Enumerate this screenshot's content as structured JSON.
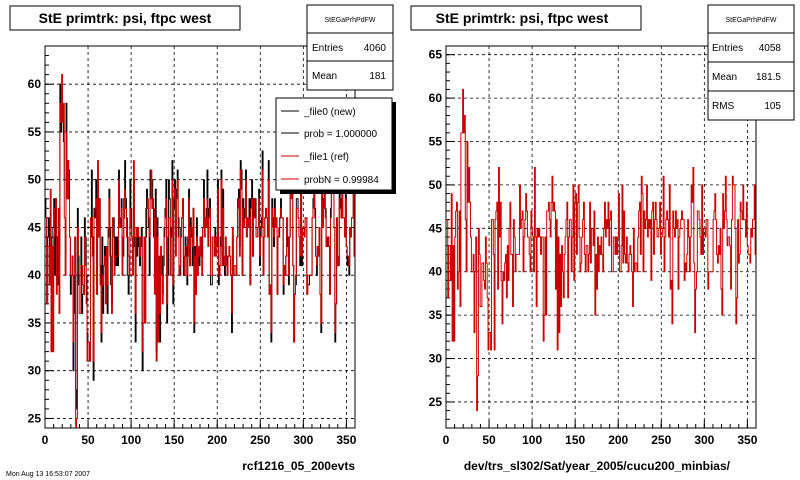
{
  "chart_data": [
    {
      "type": "histogram",
      "title": "StE primtrk: psi, ftpc west",
      "xlabel": "rcf1216_05_200evts",
      "xlim": [
        0,
        360
      ],
      "ylim": [
        24,
        64
      ],
      "xticks": [
        0,
        50,
        100,
        150,
        200,
        250,
        300,
        350
      ],
      "yticks": [
        25,
        30,
        35,
        40,
        45,
        50,
        55,
        60
      ],
      "grid": true,
      "stats": {
        "name": "StEGaPrhPdFW",
        "entries_label": "Entries",
        "entries": "4060",
        "mean_label": "Mean",
        "mean": "181"
      },
      "legend": [
        {
          "label": "_file0 (new)",
          "color": "#000000"
        },
        {
          "label": "prob = 1.000000",
          "color": "#000000"
        },
        {
          "label": "_file1 (ref)",
          "color": "#cc0000"
        },
        {
          "label": "probN = 0.99984",
          "color": "#cc0000"
        }
      ],
      "series": [
        {
          "name": "_file0 (new)",
          "color": "#000000",
          "values": [
            48,
            46,
            37,
            44,
            46,
            39,
            44,
            32,
            44,
            45,
            48,
            40,
            48,
            44,
            39,
            44,
            42,
            60,
            55,
            58,
            56,
            54,
            50,
            50,
            58,
            52,
            52,
            51,
            44,
            38,
            40,
            42,
            30,
            36,
            44,
            28,
            26,
            47,
            39,
            40,
            40,
            44,
            36,
            38,
            38,
            46,
            44,
            40,
            34,
            31,
            31,
            33,
            44,
            51,
            44,
            29,
            47,
            46,
            50,
            38,
            50,
            46,
            48,
            41,
            33,
            44,
            36,
            41,
            43,
            40,
            43,
            36,
            44,
            49,
            45,
            39,
            37,
            45,
            46,
            42,
            44,
            41,
            44,
            41,
            51,
            46,
            45,
            48,
            42,
            42,
            48,
            52,
            48,
            46,
            40,
            38,
            42,
            50,
            47,
            44,
            41,
            50,
            43,
            33,
            45,
            42,
            44,
            43,
            41,
            43,
            45,
            30,
            35,
            41,
            35,
            44,
            49,
            47,
            45,
            40,
            51,
            50,
            50,
            47,
            44,
            39,
            49,
            32,
            46,
            36,
            41,
            33,
            42,
            42,
            38,
            41,
            45,
            47,
            50,
            35,
            40,
            50,
            48,
            40,
            45,
            52,
            37,
            47,
            50,
            44,
            49,
            51,
            46,
            40,
            40,
            45,
            46,
            48,
            40,
            40,
            44,
            42,
            39,
            44,
            49,
            41,
            46,
            44,
            41,
            47,
            34,
            43,
            38,
            46,
            40,
            43,
            41,
            44,
            44,
            42,
            45,
            50,
            45,
            46,
            47,
            51,
            44,
            47,
            48,
            39,
            39,
            44,
            44,
            43,
            45,
            43,
            43,
            50,
            39,
            41,
            44,
            51,
            42,
            49,
            41,
            40,
            43,
            42,
            40,
            42,
            42,
            42,
            40,
            34,
            44,
            40,
            40,
            40,
            40,
            44,
            48,
            49,
            43,
            52,
            51,
            40,
            48,
            46,
            47,
            51,
            44,
            46,
            45,
            48,
            39,
            48,
            50,
            42,
            48,
            48,
            48,
            44,
            44,
            45,
            49,
            41,
            45,
            46,
            53,
            40,
            44,
            46,
            47,
            46,
            44,
            52,
            38,
            38,
            33,
            48,
            46,
            43,
            48,
            45,
            46,
            38,
            44,
            44,
            46,
            48,
            46,
            46,
            38,
            41,
            40,
            42,
            46,
            43,
            39,
            44,
            52,
            50,
            54,
            41,
            33,
            38,
            39,
            48,
            48,
            46,
            44,
            41,
            51,
            41,
            45,
            45,
            44,
            46,
            46,
            38,
            39,
            39,
            40,
            40,
            40,
            46,
            48,
            50,
            47,
            42,
            40,
            43,
            42,
            45,
            38,
            34,
            50,
            45,
            48,
            52,
            47,
            43,
            43,
            44,
            43,
            38,
            47,
            52,
            51,
            51,
            45,
            33,
            37,
            46,
            41,
            41,
            49,
            48,
            46,
            51,
            46,
            46,
            44,
            49,
            43,
            41,
            42,
            40,
            45,
            44,
            46,
            46,
            51,
            42
          ]
        },
        {
          "name": "_file1 (ref)",
          "color": "#cc0000",
          "values": [
            46,
            46,
            37,
            43,
            43,
            39,
            49,
            32,
            43,
            32,
            44,
            47,
            48,
            38,
            40,
            47,
            36,
            58,
            56,
            61,
            56,
            58,
            46,
            40,
            55,
            48,
            52,
            48,
            44,
            40,
            40,
            42,
            33,
            40,
            44,
            24,
            25,
            45,
            42,
            36,
            36,
            41,
            41,
            39,
            38,
            44,
            41,
            37,
            31,
            33,
            33,
            31,
            46,
            46,
            42,
            31,
            46,
            47,
            48,
            38,
            52,
            44,
            48,
            39,
            34,
            40,
            39,
            41,
            42,
            37,
            43,
            39,
            45,
            48,
            42,
            42,
            36,
            46,
            44,
            40,
            42,
            42,
            42,
            42,
            50,
            45,
            46,
            47,
            40,
            44,
            46,
            49,
            47,
            44,
            44,
            42,
            40,
            47,
            45,
            44,
            40,
            52,
            44,
            36,
            45,
            44,
            45,
            44,
            42,
            44,
            44,
            32,
            35,
            44,
            35,
            47,
            47,
            48,
            46,
            44,
            48,
            51,
            47,
            48,
            47,
            38,
            46,
            31,
            44,
            33,
            42,
            36,
            43,
            40,
            37,
            42,
            44,
            46,
            48,
            37,
            44,
            46,
            46,
            40,
            44,
            50,
            39,
            48,
            49,
            42,
            48,
            50,
            44,
            40,
            41,
            44,
            46,
            48,
            42,
            40,
            43,
            43,
            40,
            42,
            48,
            41,
            45,
            45,
            43,
            47,
            35,
            42,
            38,
            44,
            40,
            43,
            42,
            44,
            42,
            40,
            45,
            48,
            44,
            46,
            45,
            48,
            43,
            46,
            47,
            40,
            40,
            44,
            44,
            42,
            44,
            42,
            44,
            49,
            40,
            40,
            43,
            50,
            41,
            47,
            42,
            41,
            44,
            41,
            40,
            42,
            43,
            42,
            40,
            36,
            45,
            40,
            41,
            41,
            40,
            44,
            47,
            48,
            42,
            51,
            49,
            40,
            47,
            45,
            46,
            50,
            44,
            46,
            45,
            46,
            39,
            47,
            48,
            42,
            46,
            48,
            46,
            44,
            44,
            45,
            48,
            42,
            44,
            45,
            51,
            40,
            44,
            46,
            47,
            46,
            44,
            50,
            38,
            39,
            34,
            47,
            45,
            44,
            47,
            45,
            46,
            38,
            44,
            45,
            46,
            47,
            46,
            46,
            39,
            41,
            40,
            42,
            46,
            44,
            40,
            44,
            50,
            48,
            52,
            41,
            33,
            38,
            40,
            47,
            47,
            46,
            44,
            42,
            50,
            42,
            45,
            45,
            44,
            46,
            46,
            38,
            40,
            40,
            40,
            40,
            40,
            46,
            47,
            49,
            46,
            42,
            41,
            43,
            42,
            45,
            38,
            35,
            49,
            45,
            47,
            51,
            46,
            43,
            44,
            44,
            43,
            38,
            46,
            51,
            50,
            50,
            45,
            34,
            37,
            46,
            41,
            42,
            48,
            47,
            46,
            50,
            46,
            46,
            44,
            48,
            43,
            42,
            42,
            41,
            45,
            44,
            46,
            46,
            50,
            42
          ]
        }
      ]
    },
    {
      "type": "histogram",
      "title": "StE primtrk: psi, ftpc west",
      "xlabel": "dev/trs_sl302/Sat/year_2005/cucu200_minbias/",
      "xlim": [
        0,
        360
      ],
      "ylim": [
        22,
        66
      ],
      "xticks": [
        0,
        50,
        100,
        150,
        200,
        250,
        300,
        350
      ],
      "yticks": [
        25,
        30,
        35,
        40,
        45,
        50,
        55,
        60,
        65
      ],
      "grid": true,
      "stats": {
        "name": "StEGaPrhPdFW",
        "entries_label": "Entries",
        "entries": "4058",
        "mean_label": "Mean",
        "mean": "181.5",
        "rms_label": "RMS",
        "rms": "105"
      },
      "series": [
        {
          "name": "_file1 (ref)",
          "color": "#cc0000",
          "values": [
            46,
            46,
            37,
            43,
            43,
            39,
            49,
            32,
            43,
            32,
            44,
            47,
            48,
            38,
            40,
            47,
            36,
            56,
            56,
            61,
            56,
            58,
            46,
            40,
            55,
            48,
            52,
            48,
            44,
            40,
            40,
            42,
            33,
            40,
            44,
            24,
            28,
            45,
            42,
            36,
            36,
            41,
            41,
            39,
            38,
            44,
            41,
            37,
            31,
            33,
            33,
            31,
            46,
            46,
            42,
            31,
            46,
            47,
            48,
            38,
            52,
            44,
            48,
            39,
            34,
            40,
            39,
            41,
            42,
            37,
            43,
            39,
            45,
            48,
            42,
            42,
            36,
            46,
            44,
            40,
            42,
            42,
            42,
            42,
            50,
            45,
            46,
            47,
            40,
            44,
            46,
            49,
            47,
            44,
            44,
            42,
            40,
            47,
            45,
            44,
            40,
            52,
            44,
            36,
            45,
            44,
            45,
            44,
            42,
            44,
            44,
            32,
            35,
            44,
            35,
            47,
            47,
            48,
            46,
            44,
            48,
            51,
            47,
            48,
            47,
            38,
            46,
            31,
            44,
            33,
            42,
            36,
            43,
            40,
            37,
            42,
            44,
            46,
            48,
            37,
            44,
            46,
            46,
            40,
            44,
            50,
            39,
            48,
            49,
            42,
            48,
            50,
            44,
            40,
            41,
            44,
            46,
            48,
            42,
            40,
            43,
            43,
            40,
            42,
            48,
            41,
            45,
            45,
            43,
            47,
            35,
            42,
            38,
            44,
            40,
            43,
            42,
            44,
            42,
            40,
            45,
            48,
            44,
            46,
            45,
            48,
            43,
            46,
            47,
            40,
            40,
            44,
            44,
            42,
            44,
            42,
            44,
            49,
            40,
            40,
            43,
            50,
            41,
            47,
            42,
            41,
            44,
            41,
            40,
            42,
            43,
            42,
            40,
            36,
            45,
            40,
            41,
            41,
            40,
            44,
            47,
            48,
            42,
            51,
            49,
            40,
            47,
            45,
            46,
            50,
            44,
            46,
            45,
            46,
            39,
            47,
            48,
            42,
            46,
            48,
            46,
            44,
            44,
            45,
            48,
            42,
            44,
            45,
            51,
            40,
            44,
            46,
            47,
            46,
            44,
            50,
            38,
            39,
            34,
            47,
            45,
            44,
            47,
            45,
            46,
            38,
            44,
            45,
            46,
            47,
            46,
            46,
            39,
            41,
            40,
            42,
            46,
            44,
            40,
            44,
            50,
            48,
            52,
            41,
            33,
            38,
            40,
            47,
            47,
            46,
            44,
            42,
            50,
            42,
            45,
            45,
            44,
            46,
            46,
            38,
            40,
            40,
            40,
            40,
            40,
            46,
            47,
            49,
            46,
            42,
            41,
            43,
            42,
            45,
            38,
            35,
            49,
            45,
            47,
            51,
            46,
            43,
            44,
            44,
            43,
            38,
            46,
            51,
            50,
            50,
            45,
            34,
            37,
            46,
            41,
            42,
            48,
            47,
            46,
            50,
            46,
            46,
            44,
            48,
            43,
            42,
            42,
            41,
            45,
            44,
            46,
            46,
            50,
            42
          ]
        }
      ]
    }
  ],
  "footer_text": "Mon Aug 13 16:53:07 2007"
}
